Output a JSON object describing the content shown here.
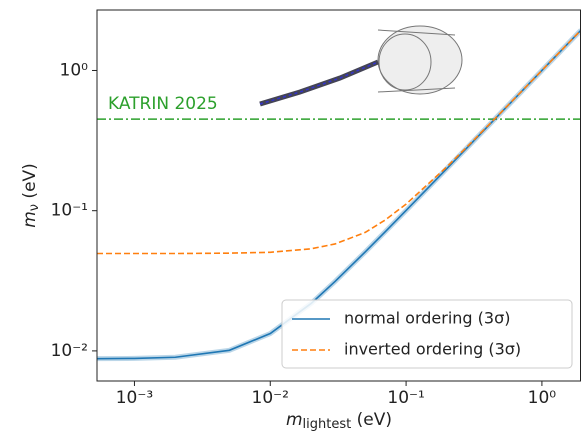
{
  "chart_data": {
    "type": "line",
    "xlabel": {
      "symbol": "m",
      "subscript": "lightest",
      "unit": "(eV)"
    },
    "ylabel": {
      "symbol": "m",
      "subscript": "ν",
      "unit": "(eV)"
    },
    "log_x": true,
    "log_y": true,
    "xlim": [
      0.00053,
      1.94
    ],
    "ylim": [
      0.0061,
      2.7
    ],
    "xticks": [
      {
        "value": 0.001,
        "label": "10⁻³"
      },
      {
        "value": 0.01,
        "label": "10⁻²"
      },
      {
        "value": 0.1,
        "label": "10⁻¹"
      },
      {
        "value": 1,
        "label": "10⁰"
      }
    ],
    "yticks": [
      {
        "value": 0.01,
        "label": "10⁻²"
      },
      {
        "value": 0.1,
        "label": "10⁻¹"
      },
      {
        "value": 1,
        "label": "10⁰"
      }
    ],
    "x": [
      0.00053,
      0.001,
      0.002,
      0.005,
      0.01,
      0.02,
      0.03,
      0.05,
      0.07,
      0.1,
      0.2,
      0.3,
      0.5,
      1,
      1.94
    ],
    "series": [
      {
        "name": "normal ordering (3σ)",
        "color": "#1f77b4",
        "dash": "solid",
        "values": [
          0.0088,
          0.00884,
          0.00901,
          0.0101,
          0.0133,
          0.0218,
          0.0313,
          0.0508,
          0.0706,
          0.1004,
          0.2002,
          0.3001,
          0.5001,
          1.0,
          1.94
        ]
      },
      {
        "name": "inverted ordering (3σ)",
        "color": "#ff7f0e",
        "dash": "dashed",
        "values": [
          0.0495,
          0.0495,
          0.0495,
          0.0498,
          0.0505,
          0.0535,
          0.0579,
          0.07,
          0.0857,
          0.1114,
          0.206,
          0.3041,
          0.5024,
          1.0012,
          1.94
        ]
      }
    ],
    "hline": {
      "value": 0.45,
      "label": "KATRIN 2025",
      "color": "#2ca02c"
    },
    "legend": "lower right"
  }
}
